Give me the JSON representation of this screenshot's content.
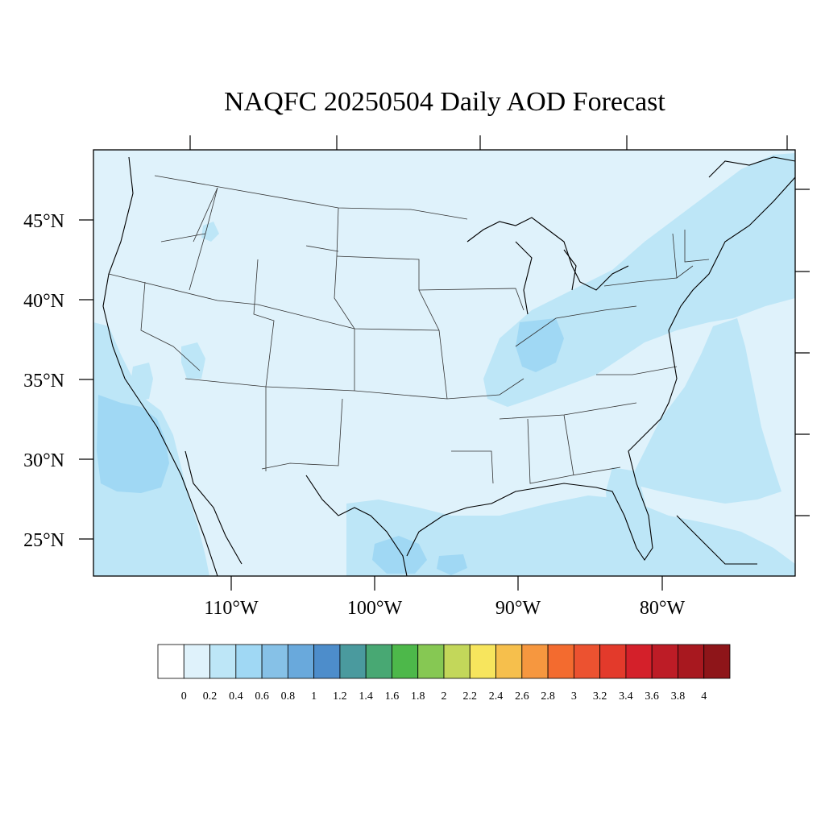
{
  "title": "NAQFC 20250504 Daily AOD Forecast",
  "map": {
    "background_color": "#dff2fb",
    "lat_labels": [
      "45°N",
      "40°N",
      "35°N",
      "30°N",
      "25°N"
    ],
    "lon_labels": [
      "110°W",
      "100°W",
      "90°W",
      "80°W"
    ]
  },
  "colorbar": {
    "labels": [
      "0",
      "0.2",
      "0.4",
      "0.6",
      "0.8",
      "1",
      "1.2",
      "1.4",
      "1.6",
      "1.8",
      "2",
      "2.2",
      "2.4",
      "2.6",
      "2.8",
      "3",
      "3.2",
      "3.4",
      "3.6",
      "3.8",
      "4"
    ],
    "colors": [
      "#ffffff",
      "#dff2fb",
      "#bde6f7",
      "#a0d8f4",
      "#86c1e7",
      "#69a9dc",
      "#4d8dcb",
      "#4a9a9e",
      "#48a873",
      "#4db84a",
      "#86c853",
      "#c3d75a",
      "#f7e55d",
      "#f6bf4c",
      "#f6973f",
      "#f36b2f",
      "#ec5230",
      "#e33a2b",
      "#d4202a",
      "#bd1c26",
      "#a8181f",
      "#8e1519"
    ]
  },
  "chart_data": {
    "type": "heatmap",
    "title": "NAQFC 20250504 Daily AOD Forecast",
    "variable": "AOD",
    "region": "Continental US",
    "levels": [
      0,
      0.2,
      0.4,
      0.6,
      0.8,
      1,
      1.2,
      1.4,
      1.6,
      1.8,
      2,
      2.2,
      2.4,
      2.6,
      2.8,
      3,
      3.2,
      3.4,
      3.6,
      3.8,
      4
    ],
    "lat_ticks": [
      45,
      40,
      35,
      30,
      25
    ],
    "lon_ticks": [
      -110,
      -100,
      -90,
      -80
    ],
    "features": [
      {
        "area": "Baja California / Southern California coast",
        "aod_range": [
          0.4,
          0.8
        ]
      },
      {
        "area": "Ohio and Tennessee Valleys",
        "aod_range": [
          0.4,
          0.6
        ]
      },
      {
        "area": "Northeast US / Atlantic",
        "aod_range": [
          0.2,
          0.4
        ]
      },
      {
        "area": "Gulf of Mexico / South Texas",
        "aod_range": [
          0.2,
          0.6
        ]
      },
      {
        "area": "Atlantic off Southeast coast",
        "aod_range": [
          0.2,
          0.4
        ]
      },
      {
        "area": "Interior West and Plains",
        "aod_range": [
          0.2,
          0.2
        ]
      }
    ]
  }
}
